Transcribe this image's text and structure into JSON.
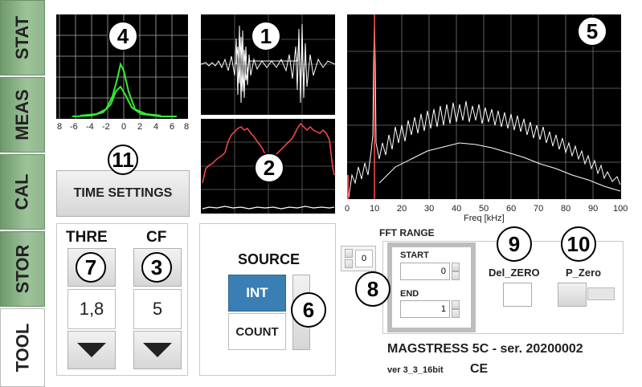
{
  "tabs": [
    {
      "label": "STAT"
    },
    {
      "label": "MEAS"
    },
    {
      "label": "CAL"
    },
    {
      "label": "STOR"
    },
    {
      "label": "TOOL"
    }
  ],
  "badges": {
    "b1": "1",
    "b2": "2",
    "b3": "3",
    "b4": "4",
    "b5": "5",
    "b6": "6",
    "b7": "7",
    "b8": "8",
    "b9": "9",
    "b10": "10",
    "b11": "11"
  },
  "plot4_ticks": [
    "8",
    "-6",
    "-4",
    "-2",
    "0",
    "2",
    "4",
    "6",
    "8"
  ],
  "fft_ticks": [
    "0",
    "10",
    "20",
    "30",
    "40",
    "50",
    "60",
    "70",
    "80",
    "90",
    "100"
  ],
  "fft_xlabel": "Freq [kHz]",
  "time_settings": {
    "label": "TIME SETTINGS"
  },
  "thre": {
    "label": "THRE",
    "value": "1,8"
  },
  "cf": {
    "label": "CF",
    "value": "5"
  },
  "source": {
    "label": "SOURCE",
    "int": "INT",
    "count": "COUNT"
  },
  "fft_range": {
    "label": "FFT RANGE",
    "top_value": "0",
    "start_label": "START",
    "start_value": "0",
    "end_label": "END",
    "end_value": "1"
  },
  "del_zero": {
    "label": "Del_ZERO"
  },
  "p_zero": {
    "label": "P_Zero"
  },
  "device": {
    "name": "MAGSTRESS 5C - ser. 20200002",
    "version": "ver 3_3_16bit",
    "ce": "CE"
  },
  "colors": {
    "tab_green": "#8fb68b",
    "source_active": "#3a7fb4",
    "plot2_line": "#ff4a4a",
    "plot4_line": "#33ee33",
    "fft_marker": "#ff4a4a"
  }
}
